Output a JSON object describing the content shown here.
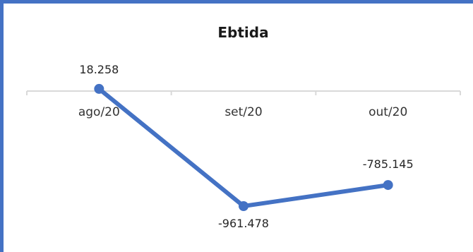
{
  "chart_data": {
    "type": "line",
    "title": "Ebtida",
    "categories": [
      "ago/20",
      "set/20",
      "out/20"
    ],
    "series": [
      {
        "values": [
          18258,
          -961478,
          -785145
        ],
        "labels": [
          "18.258",
          "-961.478",
          "-785.145"
        ],
        "color": "#4472c4"
      }
    ],
    "xlabel": "",
    "ylabel": "",
    "grid": false,
    "legend": "none"
  }
}
